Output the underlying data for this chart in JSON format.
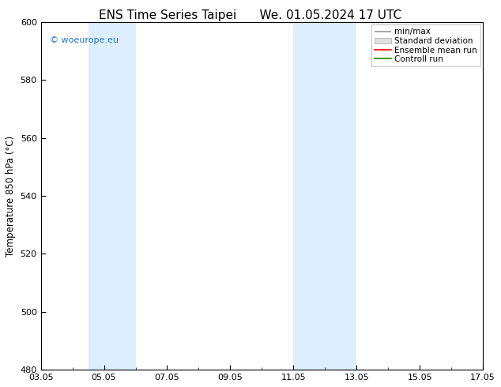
{
  "title_left": "ENS Time Series Taipei",
  "title_right": "We. 01.05.2024 17 UTC",
  "ylabel": "Temperature 850 hPa (°C)",
  "ylim": [
    480,
    600
  ],
  "yticks": [
    480,
    500,
    520,
    540,
    560,
    580,
    600
  ],
  "x_tick_labels": [
    "03.05",
    "05.05",
    "07.05",
    "09.05",
    "11.05",
    "13.05",
    "15.05",
    "17.05"
  ],
  "x_tick_positions": [
    0,
    2,
    4,
    6,
    8,
    10,
    12,
    14
  ],
  "x_total_days": 14,
  "weekend_bands": [
    {
      "start": 1.5,
      "end": 3.0
    },
    {
      "start": 8.0,
      "end": 10.0
    }
  ],
  "band_color": "#ddeeff",
  "background_color": "#ffffff",
  "watermark": "© woeurope.eu",
  "watermark_color": "#2277cc",
  "legend_items": [
    {
      "label": "min/max",
      "color": "#999999",
      "style": "minmax"
    },
    {
      "label": "Standard deviation",
      "color": "#cccccc",
      "style": "stddev"
    },
    {
      "label": "Ensemble mean run",
      "color": "#ff0000",
      "style": "line"
    },
    {
      "label": "Controll run",
      "color": "#008800",
      "style": "line"
    }
  ],
  "title_fontsize": 11,
  "axis_fontsize": 8.5,
  "tick_fontsize": 8,
  "legend_fontsize": 7.5
}
